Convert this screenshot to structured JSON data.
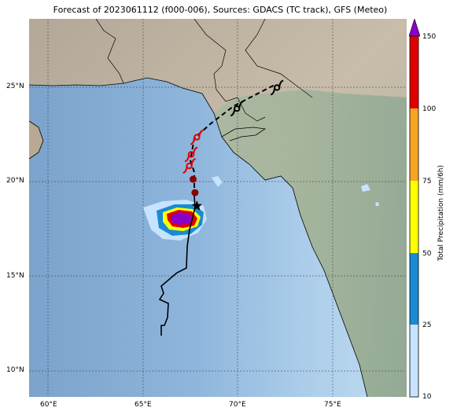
{
  "title": "Forecast of 2023061112 (f000-006), Sources: GDACS (TC track), GFS (Meteo)",
  "map": {
    "lon_ticks": [
      "60°E",
      "65°E",
      "70°E",
      "75°E"
    ],
    "lat_ticks": [
      "10°N",
      "15°N",
      "20°N",
      "25°N"
    ],
    "extent": {
      "lon_min": 59.0,
      "lon_max": 78.8,
      "lat_min": 8.8,
      "lat_max": 28.6
    }
  },
  "legend": {
    "label": "Total Precipitation (mm/6h)",
    "ticks": [
      "10",
      "25",
      "50",
      "75",
      "100",
      "150"
    ],
    "colors": [
      "#c6e3ff",
      "#1a8ad4",
      "#ffff00",
      "#f5a623",
      "#e00000",
      "#8a00c8"
    ]
  },
  "track": {
    "observed_color": "#000000",
    "forecast_color": "#000000",
    "symbols": [
      {
        "lat": 18.8,
        "lon": 67.8,
        "marker": "star",
        "color": "#000000"
      },
      {
        "lat": 19.5,
        "lon": 67.7,
        "marker": "circle",
        "color": "#8b0000"
      },
      {
        "lat": 20.2,
        "lon": 67.6,
        "marker": "circle",
        "color": "#8b0000"
      },
      {
        "lat": 20.9,
        "lon": 67.4,
        "marker": "cyclone",
        "color": "#e00000"
      },
      {
        "lat": 21.5,
        "lon": 67.5,
        "marker": "cyclone",
        "color": "#e00000"
      },
      {
        "lat": 22.4,
        "lon": 67.8,
        "marker": "cyclone",
        "color": "#e00000"
      },
      {
        "lat": 23.9,
        "lon": 69.9,
        "marker": "cyclone",
        "color": "#000000"
      },
      {
        "lat": 25.0,
        "lon": 72.0,
        "marker": "cyclone",
        "color": "#000000"
      }
    ]
  }
}
